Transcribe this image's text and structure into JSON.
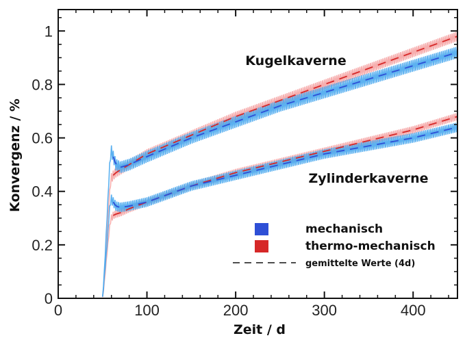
{
  "chart_data": {
    "type": "line",
    "xlabel": "Zeit / d",
    "ylabel": "Konvergenz / %",
    "xlim": [
      0,
      450
    ],
    "ylim": [
      0,
      1.08
    ],
    "x_ticks": [
      "0",
      "100",
      "200",
      "300",
      "400"
    ],
    "y_ticks": [
      "0",
      "0.2",
      "0.4",
      "0.6",
      "0.8",
      "1"
    ],
    "grid": false,
    "annotations": [
      {
        "text": "Kugelkaverne"
      },
      {
        "text": "Zylinderkaverne"
      }
    ],
    "legend": {
      "placement": "bottom-right",
      "entries": [
        {
          "label": "mechanisch",
          "color": "#2e4fd6",
          "type": "band"
        },
        {
          "label": "thermo-mechanisch",
          "color": "#d62828",
          "type": "band"
        },
        {
          "label": "gemittelte Werte (4d)",
          "color": "#111111",
          "type": "dashed"
        }
      ]
    },
    "series": [
      {
        "name": "mechanisch",
        "group": "Kugelkaverne",
        "band_color": "#4aa8ee",
        "mean_color": "#2e4fd6",
        "amplitude": 0.022,
        "x": [
          50,
          52,
          55,
          58,
          60,
          62,
          65,
          70,
          80,
          100,
          150,
          200,
          250,
          300,
          350,
          400,
          450
        ],
        "y": [
          0,
          0.1,
          0.3,
          0.5,
          0.55,
          0.53,
          0.5,
          0.49,
          0.5,
          0.53,
          0.6,
          0.66,
          0.72,
          0.77,
          0.82,
          0.87,
          0.92
        ]
      },
      {
        "name": "thermo-mechanisch",
        "group": "Kugelkaverne",
        "band_color": "#f5a5a5",
        "mean_color": "#d62828",
        "amplitude": 0.018,
        "x": [
          50,
          52,
          55,
          58,
          60,
          62,
          65,
          70,
          80,
          100,
          150,
          200,
          250,
          300,
          350,
          400,
          450
        ],
        "y": [
          0,
          0.08,
          0.25,
          0.4,
          0.45,
          0.46,
          0.47,
          0.48,
          0.5,
          0.54,
          0.61,
          0.68,
          0.74,
          0.8,
          0.86,
          0.92,
          0.98
        ]
      },
      {
        "name": "mechanisch",
        "group": "Zylinderkaverne",
        "band_color": "#4aa8ee",
        "mean_color": "#2e4fd6",
        "amplitude": 0.018,
        "x": [
          50,
          52,
          55,
          58,
          60,
          62,
          65,
          70,
          80,
          100,
          150,
          200,
          250,
          300,
          350,
          400,
          450
        ],
        "y": [
          0,
          0.08,
          0.2,
          0.34,
          0.37,
          0.36,
          0.345,
          0.34,
          0.345,
          0.36,
          0.42,
          0.46,
          0.5,
          0.54,
          0.57,
          0.6,
          0.64
        ]
      },
      {
        "name": "thermo-mechanisch",
        "group": "Zylinderkaverne",
        "band_color": "#f5a5a5",
        "mean_color": "#d62828",
        "amplitude": 0.014,
        "x": [
          50,
          52,
          55,
          58,
          60,
          62,
          65,
          70,
          80,
          100,
          150,
          200,
          250,
          300,
          350,
          400,
          450
        ],
        "y": [
          0,
          0.06,
          0.17,
          0.27,
          0.3,
          0.31,
          0.315,
          0.32,
          0.335,
          0.36,
          0.42,
          0.47,
          0.51,
          0.55,
          0.59,
          0.63,
          0.68
        ]
      }
    ]
  }
}
